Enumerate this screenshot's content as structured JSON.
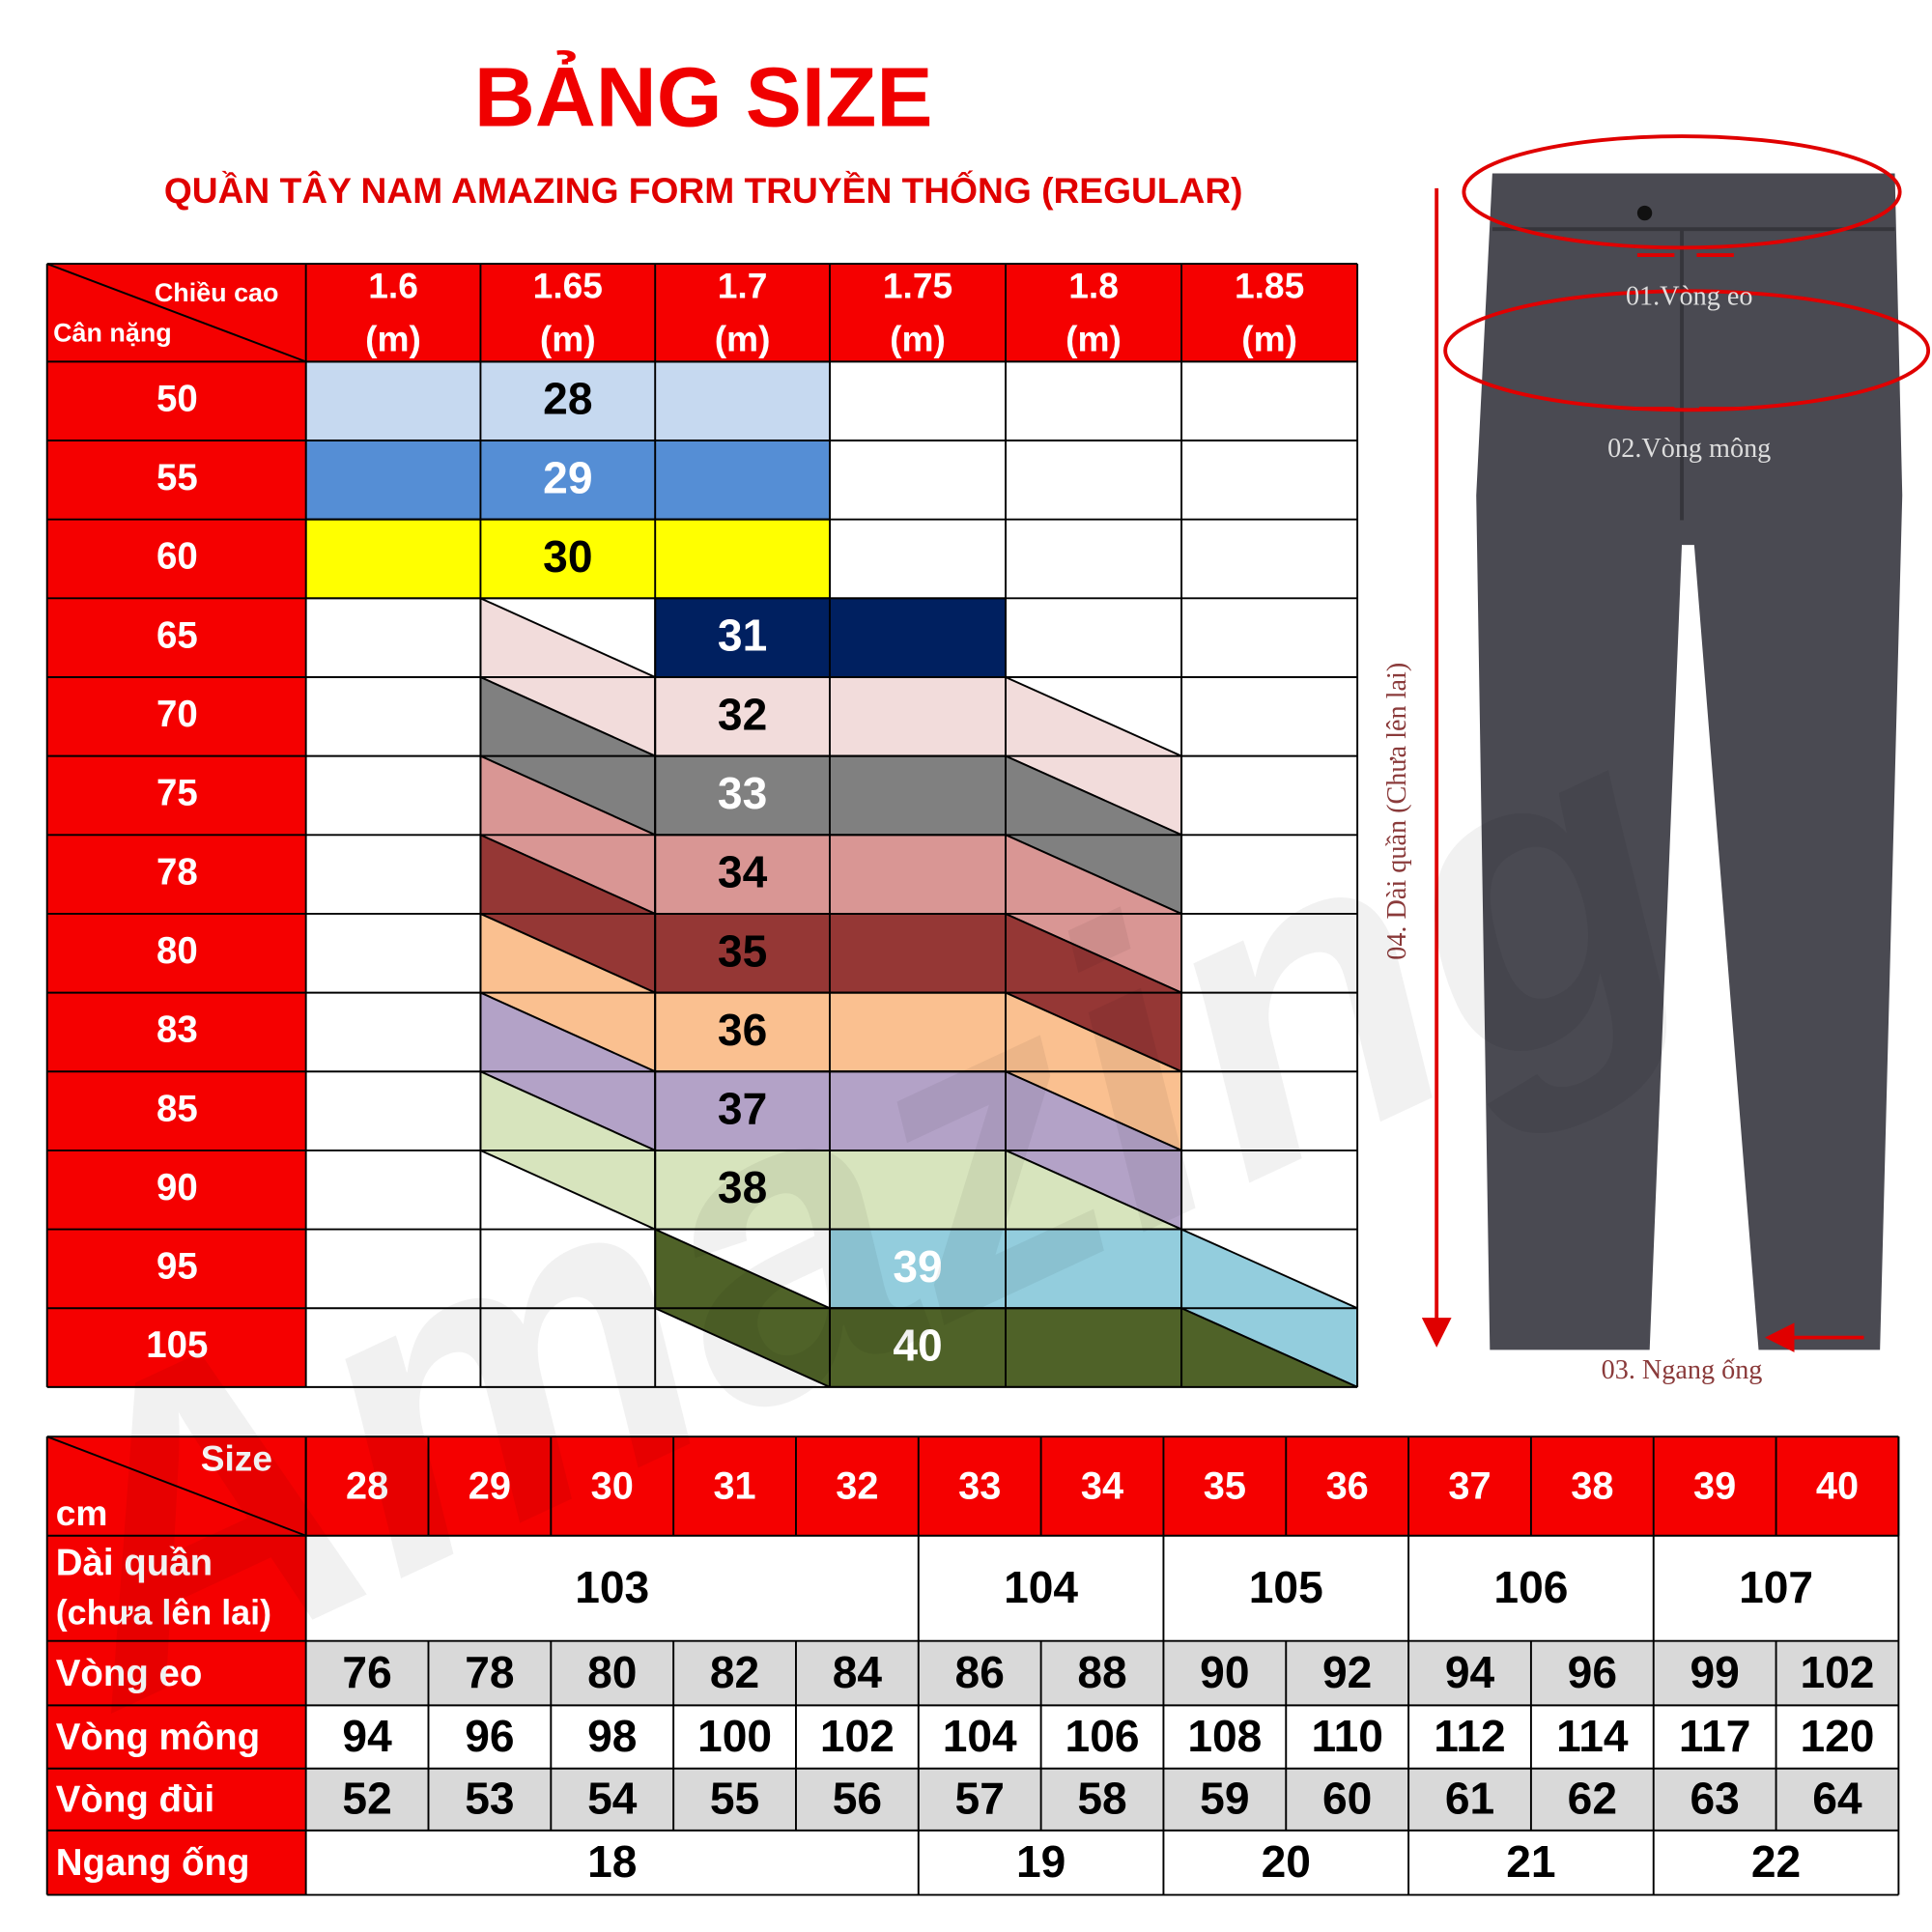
{
  "header": {
    "title": "BẢNG SIZE",
    "subtitle": "QUẦN TÂY NAM AMAZING FORM TRUYỀN THỐNG (REGULAR)"
  },
  "size_table": {
    "corner_top": "Chiều cao",
    "corner_bottom": "Cân nặng",
    "heights": [
      {
        "value": "1.6",
        "unit": "(m)"
      },
      {
        "value": "1.65",
        "unit": "(m)"
      },
      {
        "value": "1.7",
        "unit": "(m)"
      },
      {
        "value": "1.75",
        "unit": "(m)"
      },
      {
        "value": "1.8",
        "unit": "(m)"
      },
      {
        "value": "1.85",
        "unit": "(m)"
      }
    ],
    "rows": [
      {
        "weight": "50",
        "size": "28"
      },
      {
        "weight": "55",
        "size": "29"
      },
      {
        "weight": "60",
        "size": "30"
      },
      {
        "weight": "65",
        "size": "31"
      },
      {
        "weight": "70",
        "size": "32"
      },
      {
        "weight": "75",
        "size": "33"
      },
      {
        "weight": "78",
        "size": "34"
      },
      {
        "weight": "80",
        "size": "35"
      },
      {
        "weight": "83",
        "size": "36"
      },
      {
        "weight": "85",
        "size": "37"
      },
      {
        "weight": "90",
        "size": "38"
      },
      {
        "weight": "95",
        "size": "39"
      },
      {
        "weight": "105",
        "size": "40"
      }
    ]
  },
  "measure_table": {
    "corner_top": "Size",
    "corner_bottom": "cm",
    "sizes": [
      "28",
      "29",
      "30",
      "31",
      "32",
      "33",
      "34",
      "35",
      "36",
      "37",
      "38",
      "39",
      "40"
    ],
    "rows": [
      {
        "label": "Dài quần",
        "note": "(chưa lên lai)",
        "groups": [
          {
            "value": "103",
            "span": 5
          },
          {
            "value": "104",
            "span": 2
          },
          {
            "value": "105",
            "span": 2
          },
          {
            "value": "106",
            "span": 2
          },
          {
            "value": "107",
            "span": 2
          }
        ]
      },
      {
        "label": "Vòng eo",
        "values": [
          "76",
          "78",
          "80",
          "82",
          "84",
          "86",
          "88",
          "90",
          "92",
          "94",
          "96",
          "99",
          "102"
        ]
      },
      {
        "label": "Vòng mông",
        "values": [
          "94",
          "96",
          "98",
          "100",
          "102",
          "104",
          "106",
          "108",
          "110",
          "112",
          "114",
          "117",
          "120"
        ]
      },
      {
        "label": "Vòng đùi",
        "values": [
          "52",
          "53",
          "54",
          "55",
          "56",
          "57",
          "58",
          "59",
          "60",
          "61",
          "62",
          "63",
          "64"
        ]
      },
      {
        "label": "Ngang ống",
        "groups": [
          {
            "value": "18",
            "span": 5
          },
          {
            "value": "19",
            "span": 2
          },
          {
            "value": "20",
            "span": 2
          },
          {
            "value": "21",
            "span": 2
          },
          {
            "value": "22",
            "span": 2
          }
        ]
      }
    ]
  },
  "diagram": {
    "waist": "01.Vòng eo",
    "hip": "02.Vòng mông",
    "hem": "03. Ngang ống",
    "length": "04. Dài quần (Chưa lên lai)"
  },
  "watermark": "Amazing"
}
